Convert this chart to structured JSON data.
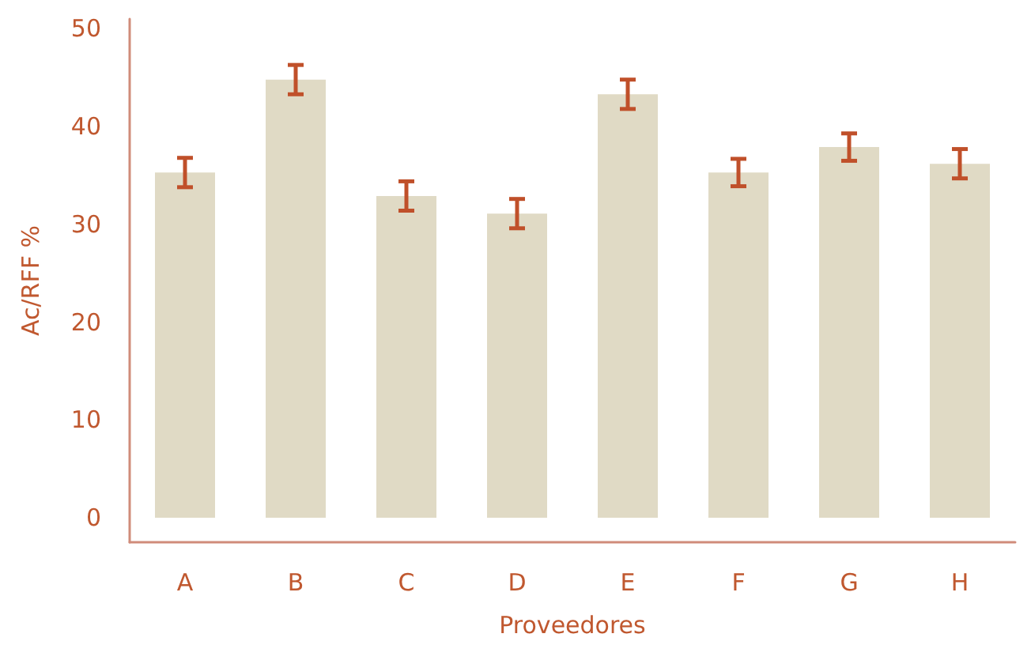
{
  "chart_data": {
    "type": "bar",
    "xlabel": "Proveedores",
    "ylabel": "Ac/RFF %",
    "categories": [
      "A",
      "B",
      "C",
      "D",
      "E",
      "F",
      "G",
      "H"
    ],
    "values": [
      35.3,
      44.8,
      32.9,
      31.1,
      43.3,
      35.3,
      37.9,
      36.2
    ],
    "errors": [
      1.5,
      1.5,
      1.5,
      1.5,
      1.5,
      1.4,
      1.4,
      1.5
    ],
    "color": "#e0dac5",
    "ylim": [
      -2.5,
      51
    ],
    "yticks": [
      0,
      10,
      20,
      30,
      40,
      50
    ],
    "grid": false
  }
}
